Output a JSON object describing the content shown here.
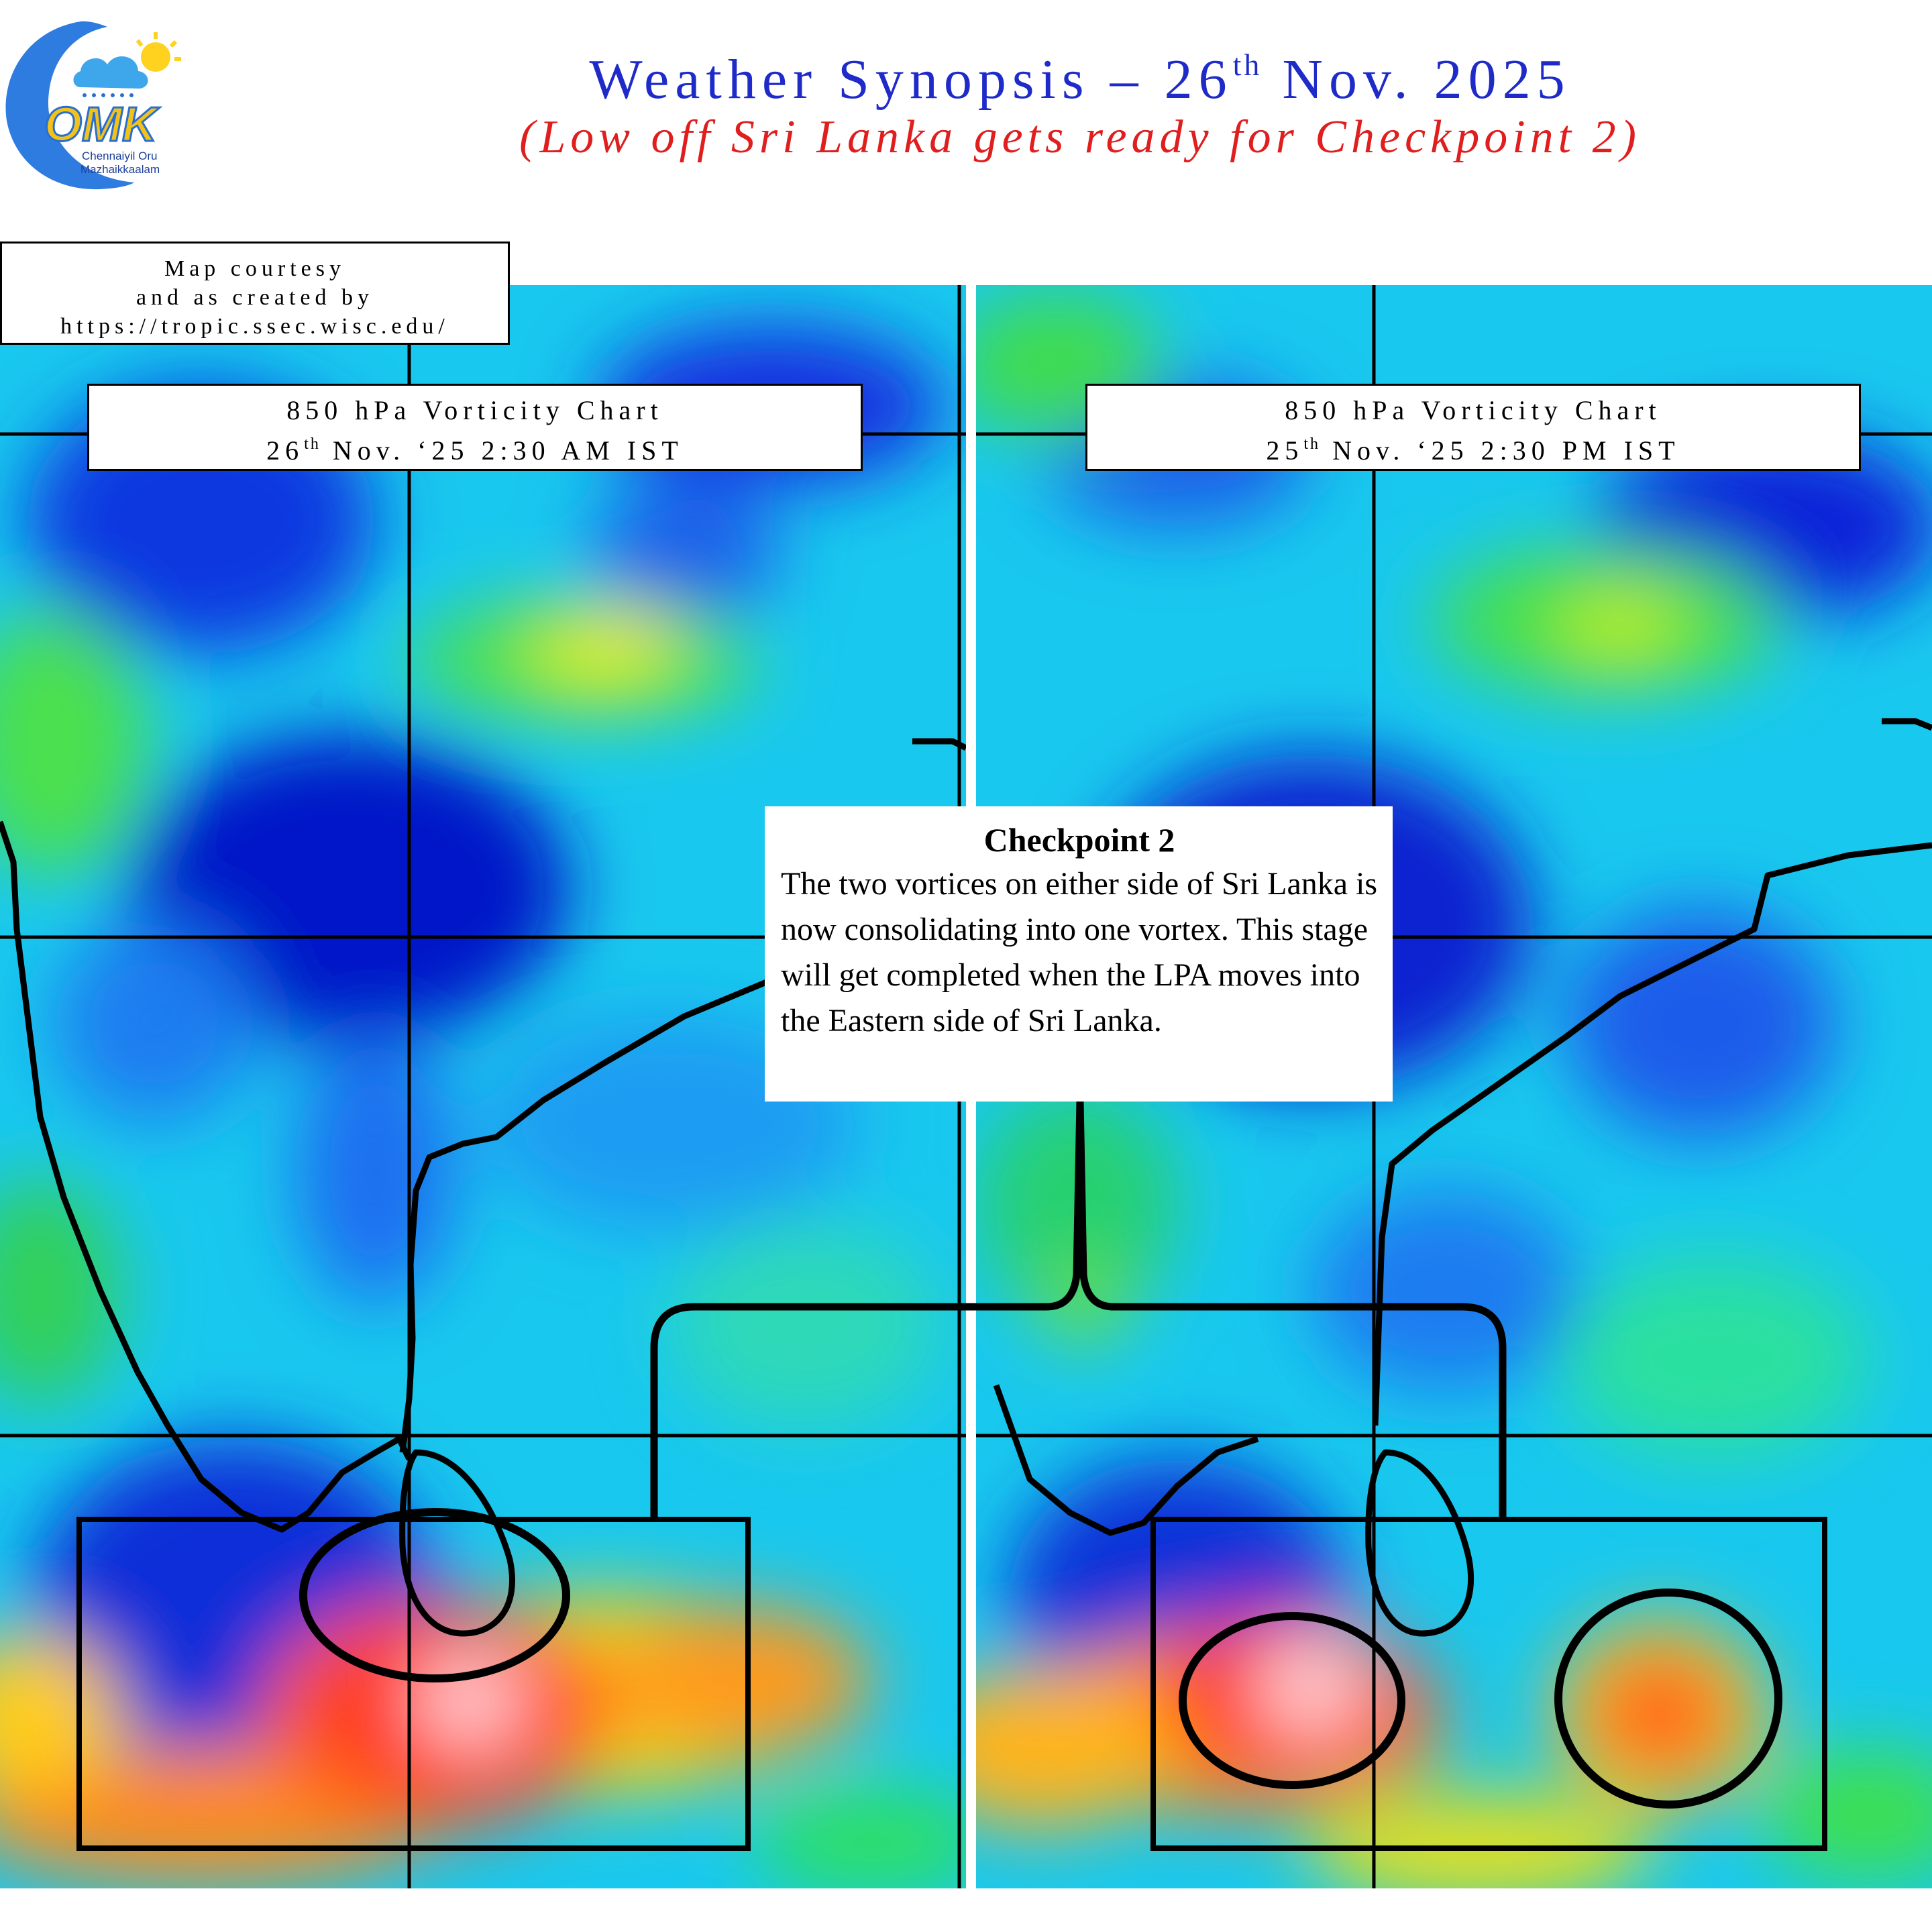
{
  "header": {
    "title_text": "Weather Synopsis – 26",
    "title_sup": "th",
    "title_tail": " Nov. 2025",
    "subtitle": "(Low off  Sri Lanka gets ready for Checkpoint 2)"
  },
  "logo": {
    "wordmark": "OMK",
    "tagline_1": "Chennaiyil Oru",
    "tagline_2": "Mazhaikkaalam",
    "icons": [
      "cloud-icon",
      "sun-icon",
      "rain-drops-icon",
      "crescent-icon"
    ]
  },
  "credit": {
    "line1": "Map courtesy",
    "line2": "and as created by",
    "line3": "https://tropic.ssec.wisc.edu/"
  },
  "panels": [
    {
      "label_line1": "850 hPa Vorticity Chart",
      "label_date": "26",
      "label_sup": "th",
      "label_rest": " Nov. ‘25 2:30 AM IST",
      "highlighted_vortices": 1
    },
    {
      "label_line1": "850 hPa Vorticity Chart",
      "label_date": "25",
      "label_sup": "th",
      "label_rest": " Nov. ‘25 2:30 PM IST",
      "highlighted_vortices": 2
    }
  ],
  "callout": {
    "title": "Checkpoint 2",
    "body": "The two vortices on either side of Sri Lanka is now consolidating into one vortex. This stage will get completed when the LPA moves into the Eastern side of Sri Lanka."
  },
  "colors": {
    "title": "#1f2bc9",
    "subtitle": "#e01e1e",
    "vorticity_low": "#0a1fd4",
    "vorticity_mid": "#16d616",
    "vorticity_high": "#ff2a1a",
    "vorticity_core": "#ffd8dc",
    "grid_and_coast": "#000000"
  }
}
